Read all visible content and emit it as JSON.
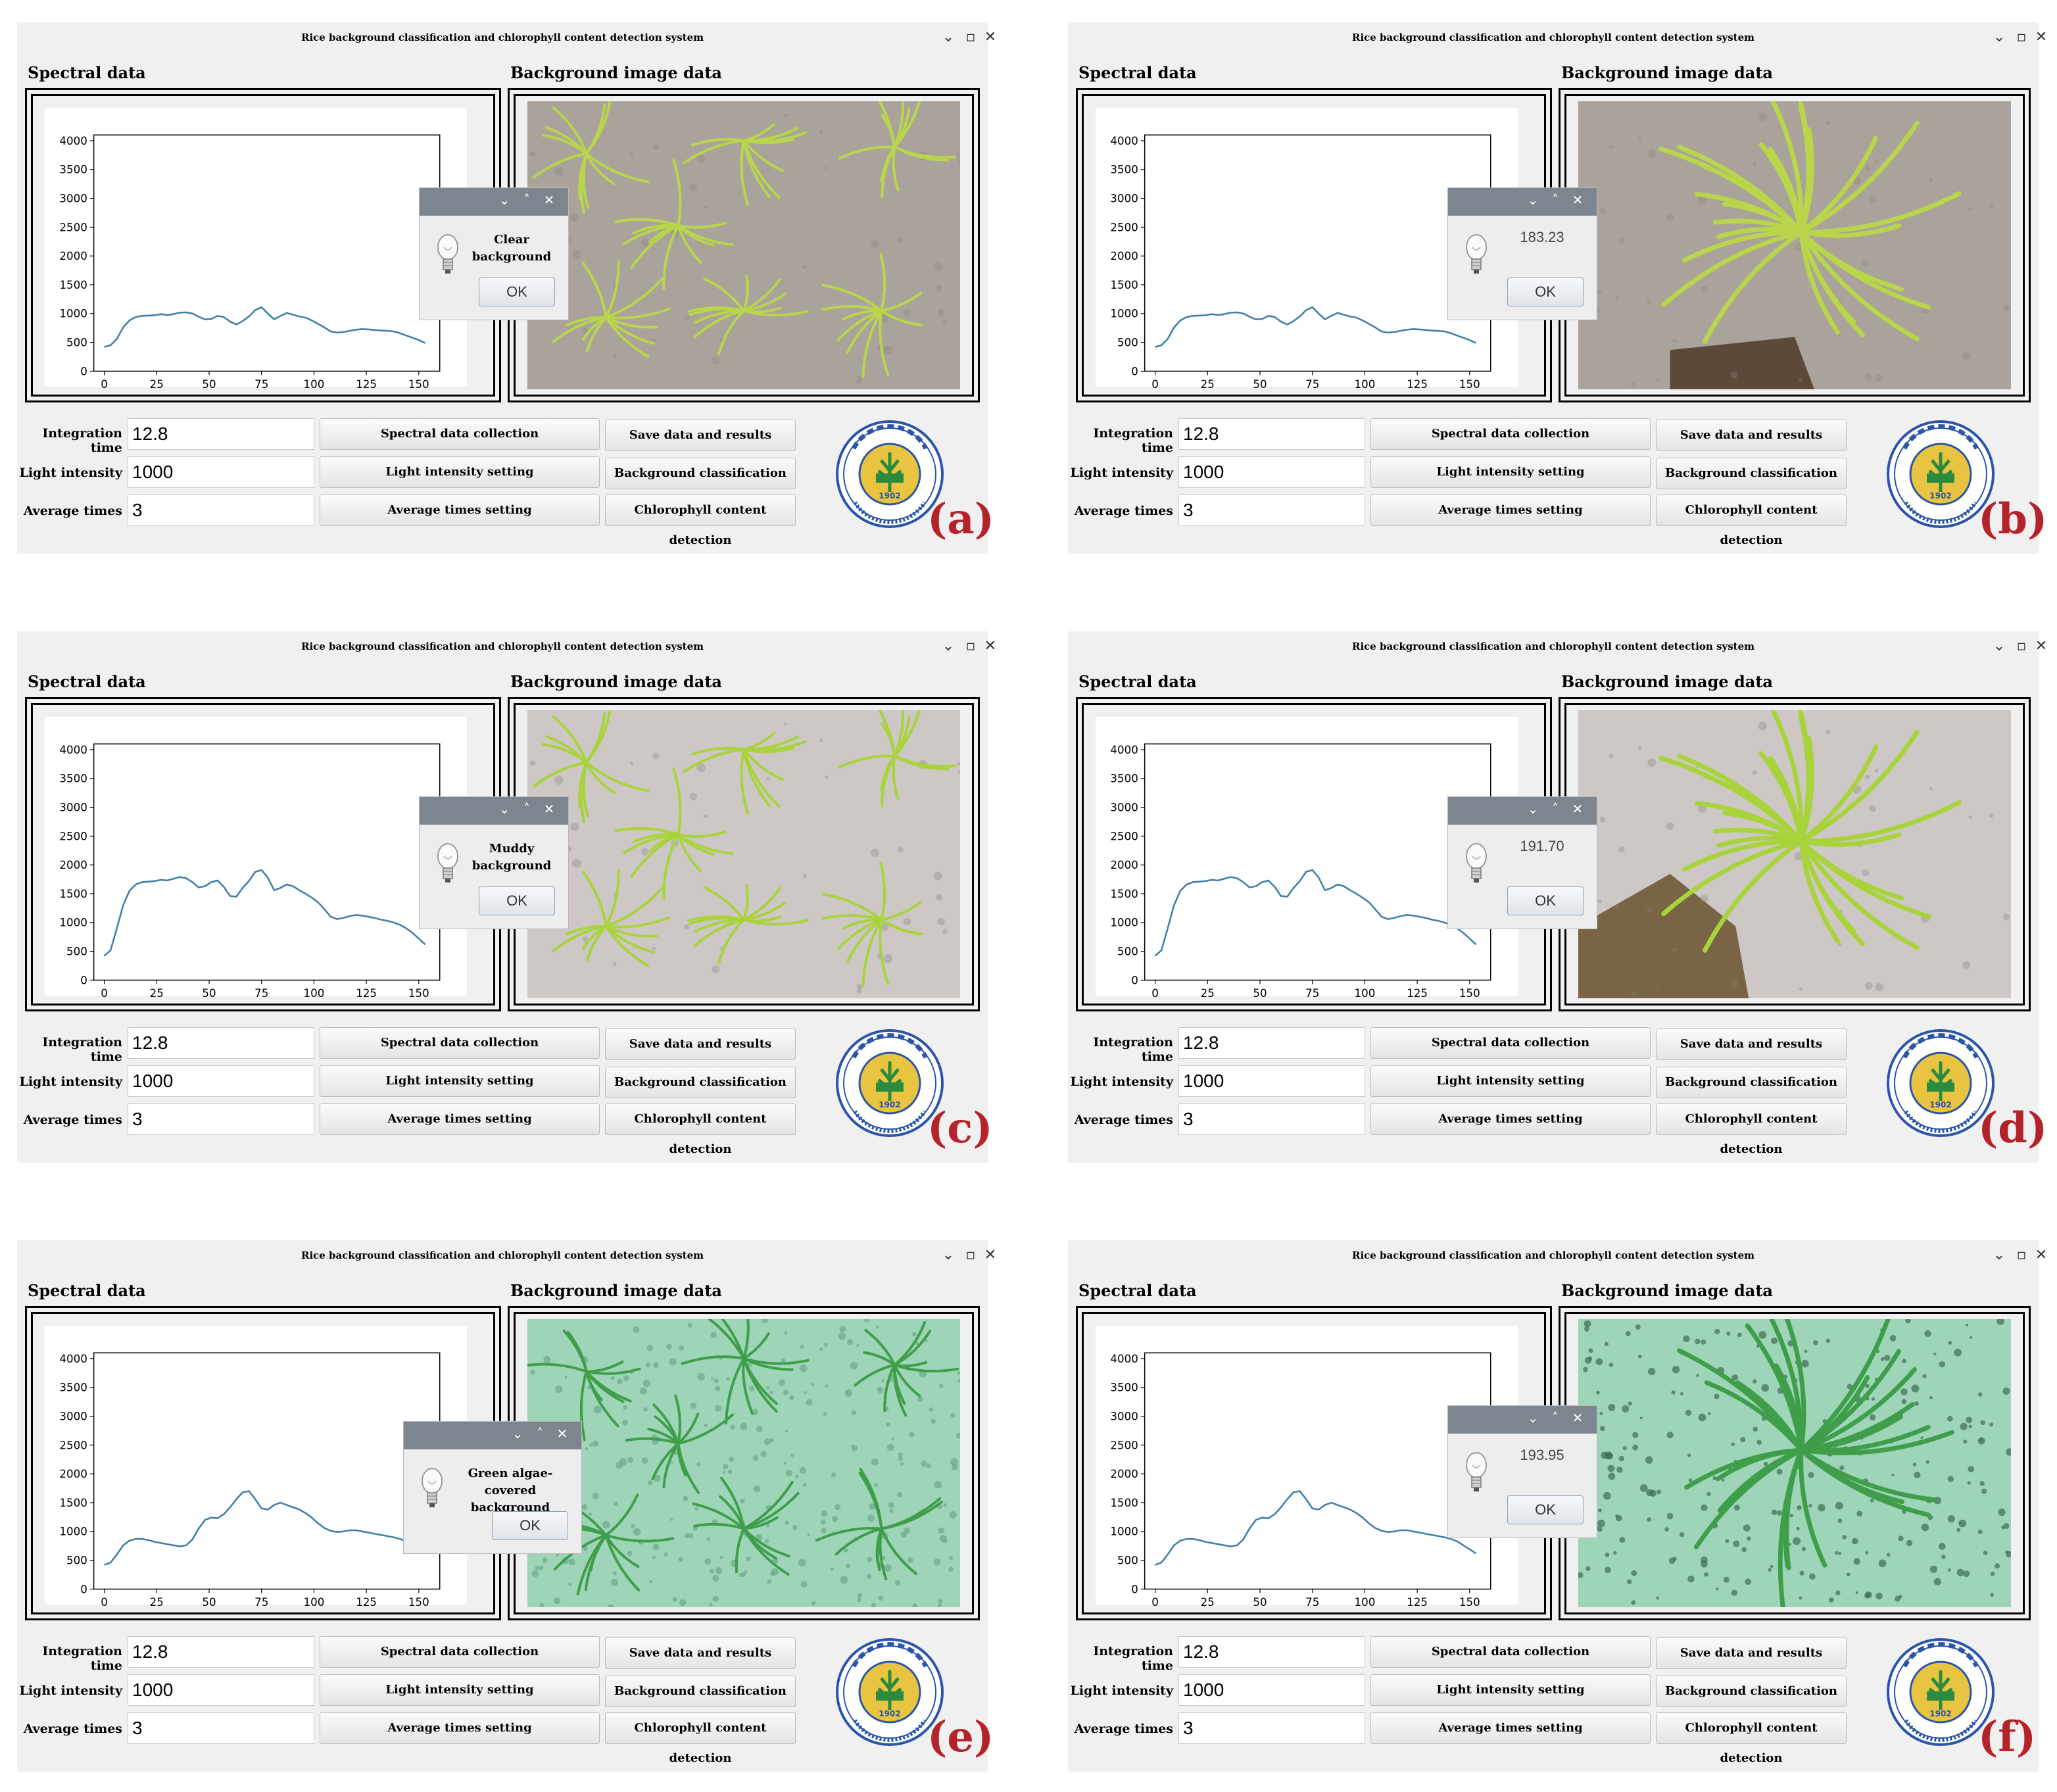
{
  "window": {
    "title": "Rice background classification and chlorophyll content detection system",
    "controls": [
      "⌄",
      "▫",
      "✕"
    ]
  },
  "labels": {
    "spectral": "Spectral data",
    "background": "Background image data",
    "integration_time": "Integration time",
    "light_intensity": "Light intensity",
    "average_times": "Average times"
  },
  "fields": {
    "integration_time": "12.8",
    "light_intensity": "1000",
    "average_times": "3"
  },
  "buttons": {
    "spectral_collection": "Spectral data collection",
    "light_setting": "Light intensity setting",
    "average_setting": "Average times setting",
    "save": "Save data and results",
    "classification": "Background classification",
    "chlorophyll": "Chlorophyll content detection"
  },
  "dialog": {
    "ok": "OK",
    "controls": [
      "⌄",
      "˄",
      "✕"
    ]
  },
  "colors": {
    "series": "#3f7fa6",
    "panel_letter": "#b4232a",
    "dialog_bar": "#7d858f"
  },
  "chart_axes": {
    "yticks": [
      "0",
      "500",
      "1000",
      "1500",
      "2000",
      "2500",
      "3000",
      "3500",
      "4000"
    ],
    "xticks": [
      "0",
      "25",
      "50",
      "75",
      "100",
      "125",
      "150"
    ],
    "xlim": [
      -5,
      160
    ],
    "ylim": [
      0,
      4100
    ]
  },
  "panels": [
    {
      "letter": "(a)",
      "result_text": "Clear\nbackground",
      "result_type": "text",
      "scene": "clear-water"
    },
    {
      "letter": "(b)",
      "result_text": "183.23",
      "result_type": "number",
      "scene": "clear-closeup"
    },
    {
      "letter": "(c)",
      "result_text": "Muddy\nbackground",
      "result_type": "text",
      "scene": "muddy-water"
    },
    {
      "letter": "(d)",
      "result_text": "191.70",
      "result_type": "number",
      "scene": "muddy-closeup"
    },
    {
      "letter": "(e)",
      "result_text": "Green algae-covered\nbackground",
      "result_type": "text",
      "scene": "algae-water"
    },
    {
      "letter": "(f)",
      "result_text": "193.95",
      "result_type": "number",
      "scene": "algae-closeup"
    }
  ],
  "chart_data": [
    {
      "type": "line",
      "x": [
        0,
        3,
        6,
        9,
        12,
        15,
        18,
        21,
        24,
        27,
        30,
        33,
        36,
        39,
        42,
        45,
        48,
        51,
        54,
        57,
        60,
        63,
        66,
        69,
        72,
        75,
        78,
        81,
        84,
        87,
        90,
        93,
        96,
        99,
        102,
        105,
        108,
        111,
        114,
        117,
        120,
        123,
        126,
        129,
        132,
        135,
        138,
        141,
        144,
        147,
        150,
        153
      ],
      "series": [
        {
          "values": [
            420,
            450,
            560,
            760,
            880,
            940,
            960,
            965,
            970,
            990,
            975,
            990,
            1015,
            1020,
            1000,
            945,
            900,
            905,
            960,
            940,
            860,
            810,
            870,
            950,
            1060,
            1110,
            1000,
            900,
            960,
            1010,
            980,
            950,
            930,
            880,
            820,
            760,
            690,
            670,
            680,
            700,
            720,
            730,
            725,
            715,
            705,
            700,
            690,
            660,
            620,
            580,
            540,
            490
          ]
        }
      ],
      "xlim": [
        -5,
        160
      ],
      "ylim": [
        0,
        4100
      ],
      "yticks": [
        0,
        500,
        1000,
        1500,
        2000,
        2500,
        3000,
        3500,
        4000
      ],
      "xticks": [
        0,
        25,
        50,
        75,
        100,
        125,
        150
      ]
    },
    {
      "type": "line",
      "x": [
        0,
        3,
        6,
        9,
        12,
        15,
        18,
        21,
        24,
        27,
        30,
        33,
        36,
        39,
        42,
        45,
        48,
        51,
        54,
        57,
        60,
        63,
        66,
        69,
        72,
        75,
        78,
        81,
        84,
        87,
        90,
        93,
        96,
        99,
        102,
        105,
        108,
        111,
        114,
        117,
        120,
        123,
        126,
        129,
        132,
        135,
        138,
        141,
        144,
        147,
        150,
        153
      ],
      "series": [
        {
          "values": [
            420,
            450,
            560,
            760,
            880,
            940,
            960,
            965,
            970,
            990,
            975,
            990,
            1015,
            1020,
            1000,
            945,
            900,
            905,
            960,
            940,
            860,
            810,
            870,
            950,
            1060,
            1110,
            1000,
            900,
            960,
            1010,
            980,
            950,
            930,
            880,
            820,
            760,
            690,
            670,
            680,
            700,
            720,
            730,
            725,
            715,
            705,
            700,
            690,
            660,
            620,
            580,
            540,
            490
          ]
        }
      ],
      "xlim": [
        -5,
        160
      ],
      "ylim": [
        0,
        4100
      ],
      "yticks": [
        0,
        500,
        1000,
        1500,
        2000,
        2500,
        3000,
        3500,
        4000
      ],
      "xticks": [
        0,
        25,
        50,
        75,
        100,
        125,
        150
      ]
    },
    {
      "type": "line",
      "x": [
        0,
        3,
        6,
        9,
        12,
        15,
        18,
        21,
        24,
        27,
        30,
        33,
        36,
        39,
        42,
        45,
        48,
        51,
        54,
        57,
        60,
        63,
        66,
        69,
        72,
        75,
        78,
        81,
        84,
        87,
        90,
        93,
        96,
        99,
        102,
        105,
        108,
        111,
        114,
        117,
        120,
        123,
        126,
        129,
        132,
        135,
        138,
        141,
        144,
        147,
        150,
        153
      ],
      "series": [
        {
          "values": [
            420,
            520,
            900,
            1300,
            1550,
            1660,
            1700,
            1710,
            1720,
            1740,
            1730,
            1760,
            1790,
            1770,
            1700,
            1610,
            1630,
            1700,
            1730,
            1620,
            1460,
            1450,
            1600,
            1720,
            1880,
            1910,
            1780,
            1560,
            1600,
            1660,
            1630,
            1560,
            1500,
            1430,
            1350,
            1230,
            1100,
            1060,
            1080,
            1110,
            1130,
            1120,
            1100,
            1080,
            1050,
            1030,
            1000,
            960,
            900,
            820,
            720,
            620
          ]
        }
      ],
      "xlim": [
        -5,
        160
      ],
      "ylim": [
        0,
        4100
      ],
      "yticks": [
        0,
        500,
        1000,
        1500,
        2000,
        2500,
        3000,
        3500,
        4000
      ],
      "xticks": [
        0,
        25,
        50,
        75,
        100,
        125,
        150
      ]
    },
    {
      "type": "line",
      "x": [
        0,
        3,
        6,
        9,
        12,
        15,
        18,
        21,
        24,
        27,
        30,
        33,
        36,
        39,
        42,
        45,
        48,
        51,
        54,
        57,
        60,
        63,
        66,
        69,
        72,
        75,
        78,
        81,
        84,
        87,
        90,
        93,
        96,
        99,
        102,
        105,
        108,
        111,
        114,
        117,
        120,
        123,
        126,
        129,
        132,
        135,
        138,
        141,
        144,
        147,
        150,
        153
      ],
      "series": [
        {
          "values": [
            420,
            520,
            900,
            1300,
            1550,
            1660,
            1700,
            1710,
            1720,
            1740,
            1730,
            1760,
            1790,
            1770,
            1700,
            1610,
            1630,
            1700,
            1730,
            1620,
            1460,
            1450,
            1600,
            1720,
            1880,
            1910,
            1780,
            1560,
            1600,
            1660,
            1630,
            1560,
            1500,
            1430,
            1350,
            1230,
            1100,
            1060,
            1080,
            1110,
            1130,
            1120,
            1100,
            1080,
            1050,
            1030,
            1000,
            960,
            900,
            820,
            720,
            620
          ]
        }
      ],
      "xlim": [
        -5,
        160
      ],
      "ylim": [
        0,
        4100
      ],
      "yticks": [
        0,
        500,
        1000,
        1500,
        2000,
        2500,
        3000,
        3500,
        4000
      ],
      "xticks": [
        0,
        25,
        50,
        75,
        100,
        125,
        150
      ]
    },
    {
      "type": "line",
      "x": [
        0,
        3,
        6,
        9,
        12,
        15,
        18,
        21,
        24,
        27,
        30,
        33,
        36,
        39,
        42,
        45,
        48,
        51,
        54,
        57,
        60,
        63,
        66,
        69,
        72,
        75,
        78,
        81,
        84,
        87,
        90,
        93,
        96,
        99,
        102,
        105,
        108,
        111,
        114,
        117,
        120,
        123,
        126,
        129,
        132,
        135,
        138,
        141,
        144,
        147,
        150,
        153
      ],
      "series": [
        {
          "values": [
            420,
            460,
            600,
            760,
            840,
            870,
            870,
            850,
            820,
            800,
            780,
            760,
            740,
            760,
            860,
            1050,
            1200,
            1240,
            1230,
            1300,
            1420,
            1560,
            1680,
            1700,
            1560,
            1400,
            1380,
            1460,
            1500,
            1460,
            1420,
            1380,
            1320,
            1240,
            1140,
            1060,
            1010,
            990,
            1000,
            1020,
            1020,
            1000,
            980,
            960,
            940,
            920,
            900,
            870,
            830,
            760,
            690,
            620
          ]
        }
      ],
      "xlim": [
        -5,
        160
      ],
      "ylim": [
        0,
        4100
      ],
      "yticks": [
        0,
        500,
        1000,
        1500,
        2000,
        2500,
        3000,
        3500,
        4000
      ],
      "xticks": [
        0,
        25,
        50,
        75,
        100,
        125,
        150
      ]
    },
    {
      "type": "line",
      "x": [
        0,
        3,
        6,
        9,
        12,
        15,
        18,
        21,
        24,
        27,
        30,
        33,
        36,
        39,
        42,
        45,
        48,
        51,
        54,
        57,
        60,
        63,
        66,
        69,
        72,
        75,
        78,
        81,
        84,
        87,
        90,
        93,
        96,
        99,
        102,
        105,
        108,
        111,
        114,
        117,
        120,
        123,
        126,
        129,
        132,
        135,
        138,
        141,
        144,
        147,
        150,
        153
      ],
      "series": [
        {
          "values": [
            420,
            460,
            600,
            760,
            840,
            870,
            870,
            850,
            820,
            800,
            780,
            760,
            740,
            760,
            860,
            1050,
            1200,
            1240,
            1230,
            1300,
            1420,
            1560,
            1680,
            1700,
            1560,
            1400,
            1380,
            1460,
            1500,
            1460,
            1420,
            1380,
            1320,
            1240,
            1140,
            1060,
            1010,
            990,
            1000,
            1020,
            1020,
            1000,
            980,
            960,
            940,
            920,
            900,
            870,
            830,
            760,
            690,
            620
          ]
        }
      ],
      "xlim": [
        -5,
        160
      ],
      "ylim": [
        0,
        4100
      ],
      "yticks": [
        0,
        500,
        1000,
        1500,
        2000,
        2500,
        3000,
        3500,
        4000
      ],
      "xticks": [
        0,
        25,
        50,
        75,
        100,
        125,
        150
      ]
    }
  ]
}
